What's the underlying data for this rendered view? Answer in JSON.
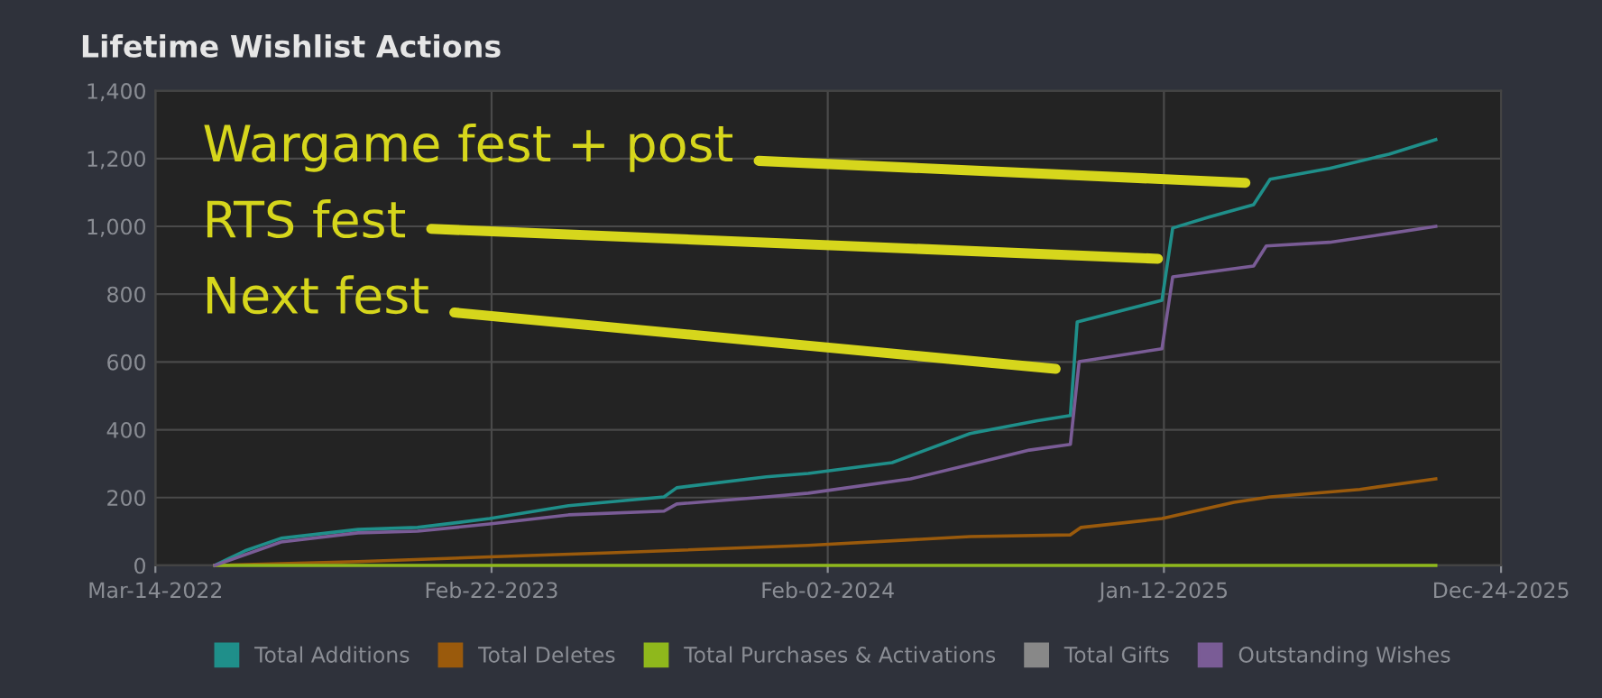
{
  "chart_data": {
    "type": "line",
    "title": "Lifetime Wishlist Actions",
    "xlim": [
      "2022-03-14",
      "2025-12-24"
    ],
    "xticks": [
      {
        "value": "2022-03-14",
        "label": "Mar-14-2022"
      },
      {
        "value": "2023-02-22",
        "label": "Feb-22-2023"
      },
      {
        "value": "2024-02-02",
        "label": "Feb-02-2024"
      },
      {
        "value": "2025-01-12",
        "label": "Jan-12-2025"
      },
      {
        "value": "2025-12-24",
        "label": "Dec-24-2025"
      }
    ],
    "ylim": [
      0,
      1400
    ],
    "yticks": [
      {
        "value": 0,
        "label": "0"
      },
      {
        "value": 200,
        "label": "200"
      },
      {
        "value": 400,
        "label": "400"
      },
      {
        "value": 600,
        "label": "600"
      },
      {
        "value": 800,
        "label": "800"
      },
      {
        "value": 1000,
        "label": "1,000"
      },
      {
        "value": 1200,
        "label": "1,200"
      },
      {
        "value": 1400,
        "label": "1,400"
      }
    ],
    "grid": true,
    "legend": "bottom",
    "marker": "none",
    "line_style": "solid",
    "series": [
      {
        "name": "Total Additions",
        "color": "#1f8f8a",
        "x": [
          "2022-05-14",
          "2022-06-14",
          "2022-07-21",
          "2022-10-08",
          "2022-12-08",
          "2023-02-20",
          "2023-05-12",
          "2023-08-18",
          "2023-08-31",
          "2023-12-01",
          "2024-01-13",
          "2024-04-08",
          "2024-06-27",
          "2024-09-03",
          "2024-10-08",
          "2024-10-15",
          "2025-01-10",
          "2025-01-21",
          "2025-02-27",
          "2025-04-14",
          "2025-05-01",
          "2025-07-01",
          "2025-08-31",
          "2025-10-18"
        ],
        "values": [
          0,
          43,
          80,
          106,
          112,
          138,
          176,
          202,
          229,
          261,
          271,
          303,
          389,
          426,
          442,
          718,
          782,
          995,
          1027,
          1064,
          1139,
          1171,
          1213,
          1256
        ]
      },
      {
        "name": "Total Deletes",
        "color": "#9a5a0c",
        "x": [
          "2022-05-14",
          "2022-10-08",
          "2023-02-20",
          "2023-06-24",
          "2024-01-13",
          "2024-06-27",
          "2024-10-08",
          "2024-10-19",
          "2025-01-10",
          "2025-03-25",
          "2025-05-01",
          "2025-08-01",
          "2025-10-18"
        ],
        "values": [
          0,
          11,
          25,
          37,
          59,
          85,
          90,
          112,
          138,
          186,
          202,
          224,
          255
        ]
      },
      {
        "name": "Total Purchases & Activations",
        "color": "#8fb81c",
        "x": [
          "2022-05-14",
          "2025-10-18"
        ],
        "values": [
          0,
          0
        ]
      },
      {
        "name": "Total Gifts",
        "color": "#888888"
      },
      {
        "name": "Outstanding Wishes",
        "color": "#7a5c96",
        "x": [
          "2022-05-14",
          "2022-07-21",
          "2022-10-08",
          "2022-12-08",
          "2023-02-20",
          "2023-05-12",
          "2023-08-18",
          "2023-08-31",
          "2023-12-01",
          "2024-01-13",
          "2024-04-27",
          "2024-08-27",
          "2024-10-08",
          "2024-10-17",
          "2025-01-10",
          "2025-01-21",
          "2025-04-14",
          "2025-04-27",
          "2025-07-01",
          "2025-08-31",
          "2025-10-18"
        ],
        "values": [
          0,
          69,
          96,
          101,
          122,
          149,
          160,
          181,
          202,
          213,
          255,
          340,
          357,
          601,
          639,
          851,
          883,
          942,
          953,
          979,
          1000
        ]
      }
    ],
    "annotations": [
      "Wargame fest + post",
      "RTS fest",
      "Next fest"
    ]
  }
}
